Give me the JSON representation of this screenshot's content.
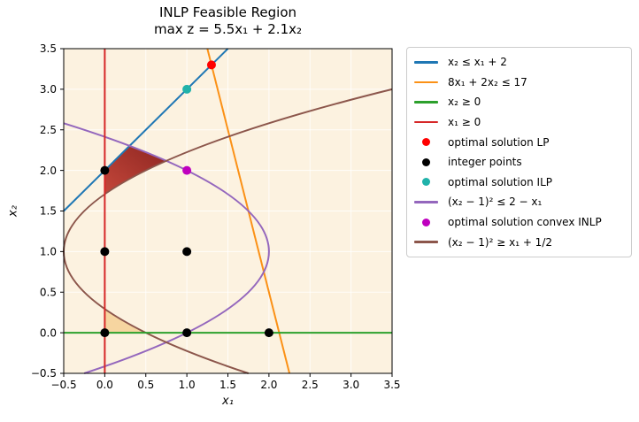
{
  "chart_data": {
    "type": "line",
    "title": "INLP Feasible Region",
    "subtitle": "max z = 5.5x₁ + 2.1x₂",
    "xlabel": "x₁",
    "ylabel": "x₂",
    "xlim": [
      -0.5,
      3.5
    ],
    "ylim": [
      -0.5,
      3.5
    ],
    "grid": true,
    "grid_color": "rgba(255,255,255,0.8)",
    "background_color": "#fcf2e0",
    "xticks": {
      "values": [
        -0.5,
        0,
        0.5,
        1,
        1.5,
        2,
        2.5,
        3,
        3.5
      ],
      "labels": [
        "−0.5",
        "0.0",
        "0.5",
        "1.0",
        "1.5",
        "2.0",
        "2.5",
        "3.0",
        "3.5"
      ]
    },
    "yticks": {
      "values": [
        -0.5,
        0,
        0.5,
        1,
        1.5,
        2,
        2.5,
        3,
        3.5
      ],
      "labels": [
        "−0.5",
        "0.0",
        "0.5",
        "1.0",
        "1.5",
        "2.0",
        "2.5",
        "3.0",
        "3.5"
      ]
    },
    "plot_elements": [
      {
        "kind": "region",
        "name": "lower-feasible-region",
        "description": "x1>=0, x2>=0, (x2-1)^2>=x1+1/2",
        "fill": "#f6d5a0",
        "path": [
          [
            "M",
            0,
            0.2929
          ],
          [
            "Q",
            0.2073,
            0.1464,
            0.5,
            0
          ],
          [
            "L",
            0,
            0
          ],
          [
            "Z"
          ]
        ]
      },
      {
        "kind": "region",
        "name": "inlp-feasible-region",
        "description": "x1>=0, x2<=x1+2, (x2-1)^2<=2-x1, (x2-1)^2>=x1+1/2",
        "fill": [
          "#c4473b",
          "#8e2621"
        ],
        "path": [
          [
            "M",
            0,
            2
          ],
          [
            "L",
            0.3028,
            2.3028
          ],
          [
            "Q",
            0.5426,
            2.2107,
            0.75,
            2.118
          ],
          [
            "Q",
            0.2905,
            1.9125,
            0,
            1.7071
          ],
          [
            "Z"
          ]
        ]
      },
      {
        "kind": "line",
        "name": "constraint-line-x2-le-x1-plus-2",
        "equation": "x₂ ≤ x₁ + 2",
        "color": "#1f77b4",
        "path": [
          [
            "M",
            -0.5,
            1.5
          ],
          [
            "L",
            1.5,
            3.5
          ]
        ]
      },
      {
        "kind": "line",
        "name": "constraint-line-8x1-plus-2x2-le-17",
        "equation": "8x₁ + 2x₂ ≤ 17",
        "color": "#fb9116",
        "path": [
          [
            "M",
            1.25,
            3.5
          ],
          [
            "L",
            2.25,
            -0.5
          ]
        ]
      },
      {
        "kind": "curve",
        "name": "purple-parabola",
        "equation": "(x₂ − 1)² ≤ 2 − x₁",
        "color": "#9467bd",
        "path": [
          [
            "M",
            -0.5,
            2.5811
          ],
          [
            "Q",
            2,
            1.7906,
            2,
            1
          ],
          [
            "Q",
            2,
            0.25,
            -0.25,
            -0.5
          ]
        ]
      },
      {
        "kind": "curve",
        "name": "brown-parabola",
        "equation": "(x₂ − 1)² ≥ x₁ + 1/2",
        "color": "#8c564b",
        "path": [
          [
            "M",
            3.5,
            3
          ],
          [
            "Q",
            -0.5,
            2,
            -0.5,
            1
          ],
          [
            "Q",
            -0.5,
            0.25,
            1.75,
            -0.5
          ]
        ]
      },
      {
        "kind": "line",
        "name": "constraint-line-x2-ge-0",
        "equation": "x₂ ≥ 0",
        "color": "#2ca02c",
        "path": [
          [
            "M",
            -0.5,
            0
          ],
          [
            "L",
            3.5,
            0
          ]
        ]
      },
      {
        "kind": "line",
        "name": "constraint-line-x1-ge-0",
        "equation": "x₁ ≥ 0",
        "color": "#d62728",
        "path": [
          [
            "M",
            0,
            -0.5
          ],
          [
            "L",
            0,
            3.5
          ]
        ]
      },
      {
        "kind": "points",
        "name": "integer-points",
        "label": "integer points",
        "color": "#000000",
        "r": 5,
        "pts": [
          [
            0,
            0
          ],
          [
            0,
            1
          ],
          [
            0,
            2
          ],
          [
            1,
            0
          ],
          [
            1,
            1
          ],
          [
            2,
            0
          ]
        ]
      },
      {
        "kind": "points",
        "name": "optimal-lp-point",
        "label": "optimal solution LP",
        "color": "#ff0000",
        "r": 5,
        "pts": [
          [
            1.3,
            3.3
          ]
        ]
      },
      {
        "kind": "points",
        "name": "optimal-ilp-point",
        "label": "optimal solution ILP",
        "color": "#20b2aa",
        "r": 5,
        "pts": [
          [
            1,
            3
          ]
        ]
      },
      {
        "kind": "points",
        "name": "optimal-convex-inlp-point",
        "label": "optimal solution convex INLP",
        "color": "#bf00bf",
        "r": 5,
        "pts": [
          [
            1,
            2
          ]
        ]
      }
    ],
    "legend": {
      "position": "outside-right",
      "items": [
        {
          "marker": "line",
          "color": "#1f77b4",
          "label": "x₂ ≤ x₁ + 2"
        },
        {
          "marker": "line",
          "color": "#fb9116",
          "label": "8x₁ + 2x₂ ≤ 17"
        },
        {
          "marker": "line",
          "color": "#2ca02c",
          "label": "x₂ ≥ 0"
        },
        {
          "marker": "line",
          "color": "#d62728",
          "label": "x₁ ≥ 0"
        },
        {
          "marker": "dot",
          "color": "#ff0000",
          "label": "optimal solution LP"
        },
        {
          "marker": "dot",
          "color": "#000000",
          "label": "integer points"
        },
        {
          "marker": "dot",
          "color": "#20b2aa",
          "label": "optimal solution ILP"
        },
        {
          "marker": "line",
          "color": "#9467bd",
          "label": "(x₂ − 1)² ≤ 2 − x₁"
        },
        {
          "marker": "dot",
          "color": "#bf00bf",
          "label": "optimal solution convex INLP"
        },
        {
          "marker": "line",
          "color": "#8c564b",
          "label": "(x₂ − 1)² ≥ x₁ + 1/2"
        }
      ]
    }
  }
}
